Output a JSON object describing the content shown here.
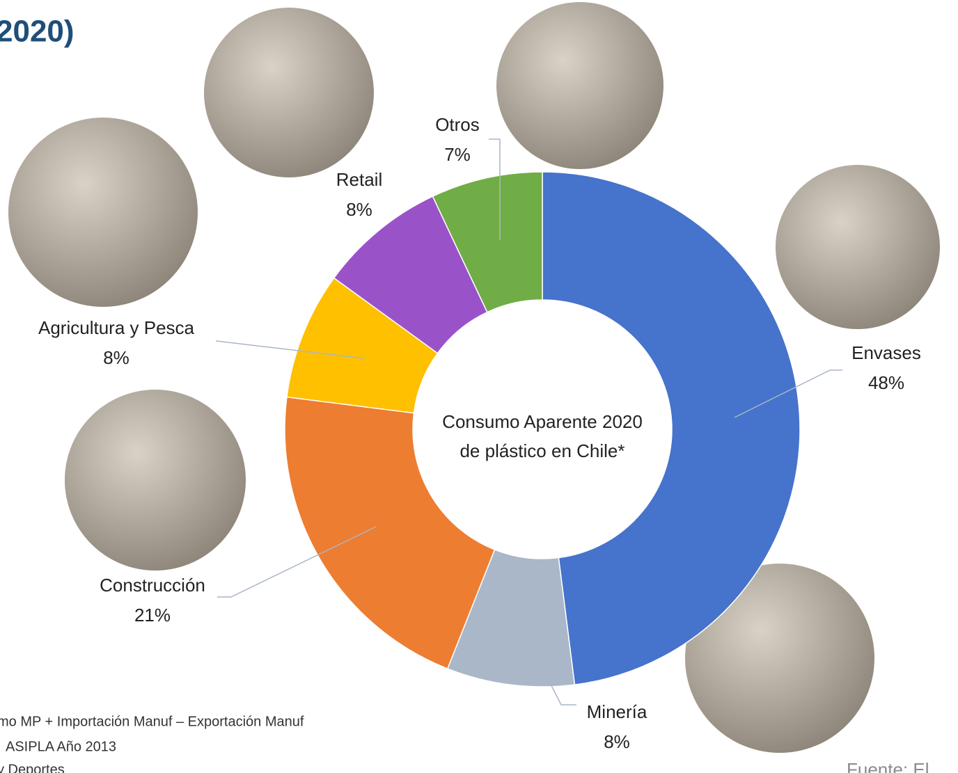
{
  "chart_data": {
    "type": "donut",
    "title": "2020)",
    "center_text": [
      "Consumo Aparente 2020",
      "de plástico en Chile*"
    ],
    "categories": [
      "Envases",
      "Minería",
      "Construcción",
      "Agricultura y Pesca",
      "Retail",
      "Otros"
    ],
    "values": [
      48,
      8,
      21,
      8,
      8,
      7
    ],
    "value_labels": [
      "48%",
      "8%",
      "21%",
      "8%",
      "8%",
      "7%"
    ],
    "colors": [
      "#4673cb",
      "#a9b7c9",
      "#ed7d31",
      "#ffc000",
      "#9a52c9",
      "#70ad47"
    ],
    "footnotes": [
      "mo MP + Importación Manuf – Exportación Manuf",
      "ASIPLA Año 2013",
      "y Deportes"
    ],
    "source": "Fuente: El"
  }
}
